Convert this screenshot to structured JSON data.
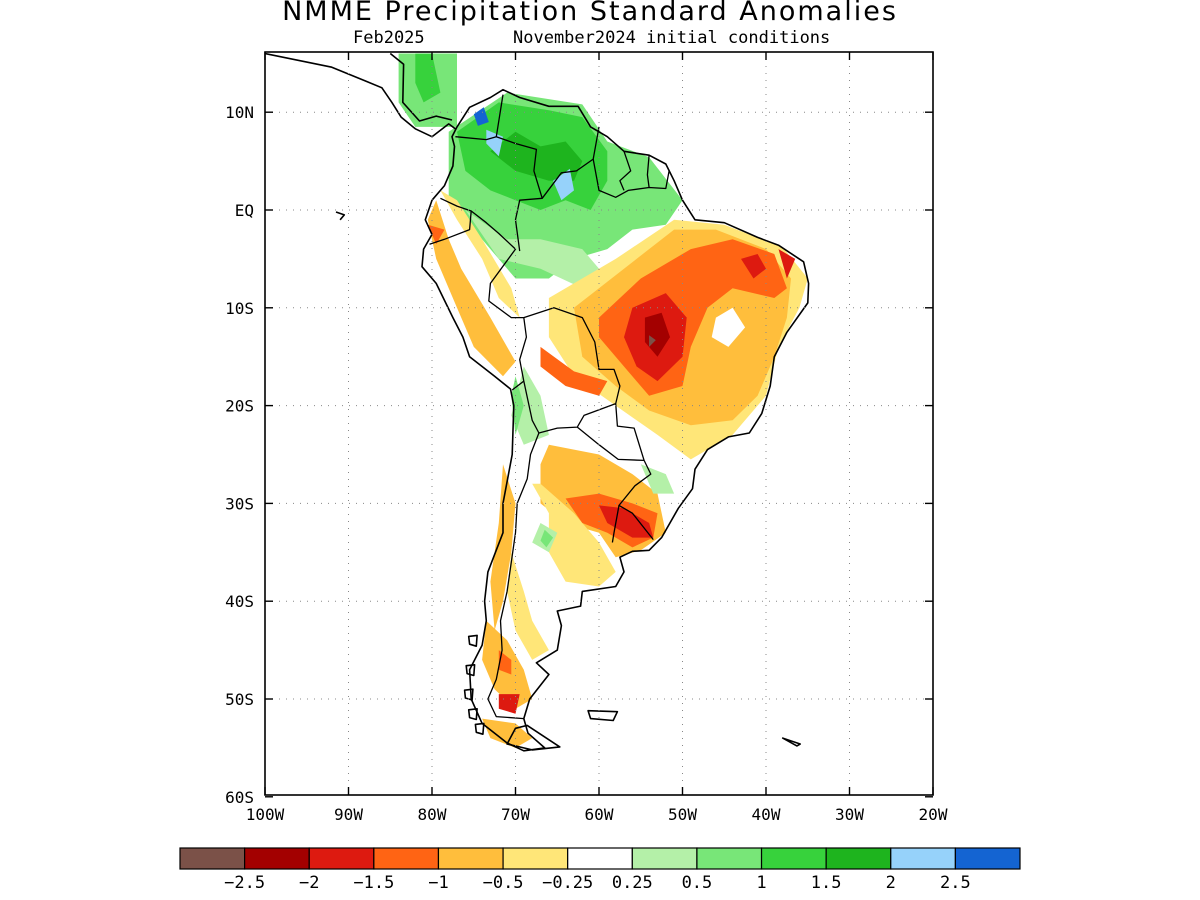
{
  "title": "NMME Precipitation Standard Anomalies",
  "subtitle_left": "Feb2025",
  "subtitle_right": "November2024 initial conditions",
  "axes": {
    "lon_labels": [
      "100W",
      "90W",
      "80W",
      "70W",
      "60W",
      "50W",
      "40W",
      "30W",
      "20W"
    ],
    "lat_labels": [
      "10N",
      "EQ",
      "10S",
      "20S",
      "30S",
      "40S",
      "50S",
      "60S"
    ],
    "lon_range": [
      -100,
      -20
    ],
    "lat_range": [
      -60,
      16
    ],
    "grid": "dotted"
  },
  "colorbar": {
    "colors": [
      "#7b5148",
      "#a30000",
      "#dd1a10",
      "#ff6414",
      "#ffbe3c",
      "#ffe678",
      "#ffffff",
      "#b4f0a8",
      "#78e678",
      "#37d23c",
      "#1eb41e",
      "#96d2fa",
      "#1464d2"
    ],
    "labels": [
      "-2.5",
      "-2",
      "-1.5",
      "-1",
      "-0.5",
      "-0.25",
      "0.25",
      "0.5",
      "1",
      "1.5",
      "2",
      "2.5"
    ]
  },
  "chart_data": {
    "type": "heatmap",
    "title": "NMME Precipitation Standard Anomalies",
    "valid_month": "Feb2025",
    "initial_conditions": "November2024 initial conditions",
    "region": "South America",
    "units": "standard anomaly",
    "levels": [
      -2.5,
      -2,
      -1.5,
      -1,
      -0.5,
      -0.25,
      0.25,
      0.5,
      1,
      1.5,
      2,
      2.5
    ],
    "patterns": [
      {
        "area": "Northern South America (Colombia, Venezuela)",
        "anomaly": 1.5
      },
      {
        "area": "Central Colombia / Venezuela interior",
        "anomaly": 2.0
      },
      {
        "area": "Northwest Colombia",
        "anomaly": 2.5
      },
      {
        "area": "Central-Northeast Brazil",
        "anomaly": -1.0
      },
      {
        "area": "Mato Grosso core",
        "anomaly": -2.0
      },
      {
        "area": "Peru / Ecuador coast",
        "anomaly": -0.5
      },
      {
        "area": "Northern Argentina / Uruguay",
        "anomaly": -1.0
      },
      {
        "area": "Southern Chile / Patagonia",
        "anomaly": -0.5
      }
    ]
  }
}
